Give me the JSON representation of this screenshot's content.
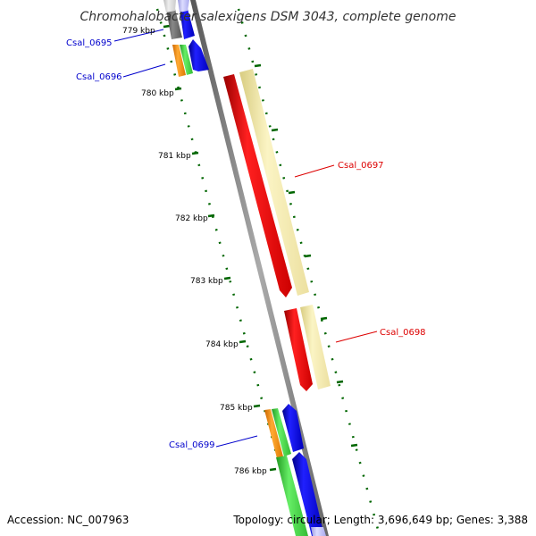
{
  "title": "Chromohalobacter salexigens DSM 3043, complete genome",
  "footer": {
    "accession": "Accession: NC_007963",
    "summary": "Topology: circular; Length: 3,696,649 bp; Genes: 3,388"
  },
  "ticks": [
    "779 kbp",
    "780 kbp",
    "781 kbp",
    "782 kbp",
    "783 kbp",
    "784 kbp",
    "785 kbp",
    "786 kbp"
  ],
  "genes": [
    {
      "id": "Csal_0695",
      "color": "#0000cc"
    },
    {
      "id": "Csal_0696",
      "color": "#0000cc"
    },
    {
      "id": "Csal_0697",
      "color": "#dd0000"
    },
    {
      "id": "Csal_0698",
      "color": "#dd0000"
    },
    {
      "id": "Csal_0699",
      "color": "#0000cc"
    }
  ],
  "colors": {
    "backbone": "#888888",
    "tick_mark": "#006600",
    "cds_red": "#ff0000",
    "cds_blue": "#0000ff",
    "cds_green": "#33cc33",
    "cds_orange": "#ff8800",
    "cds_pale": "#f5eaa0",
    "cds_gray": "#666666"
  }
}
